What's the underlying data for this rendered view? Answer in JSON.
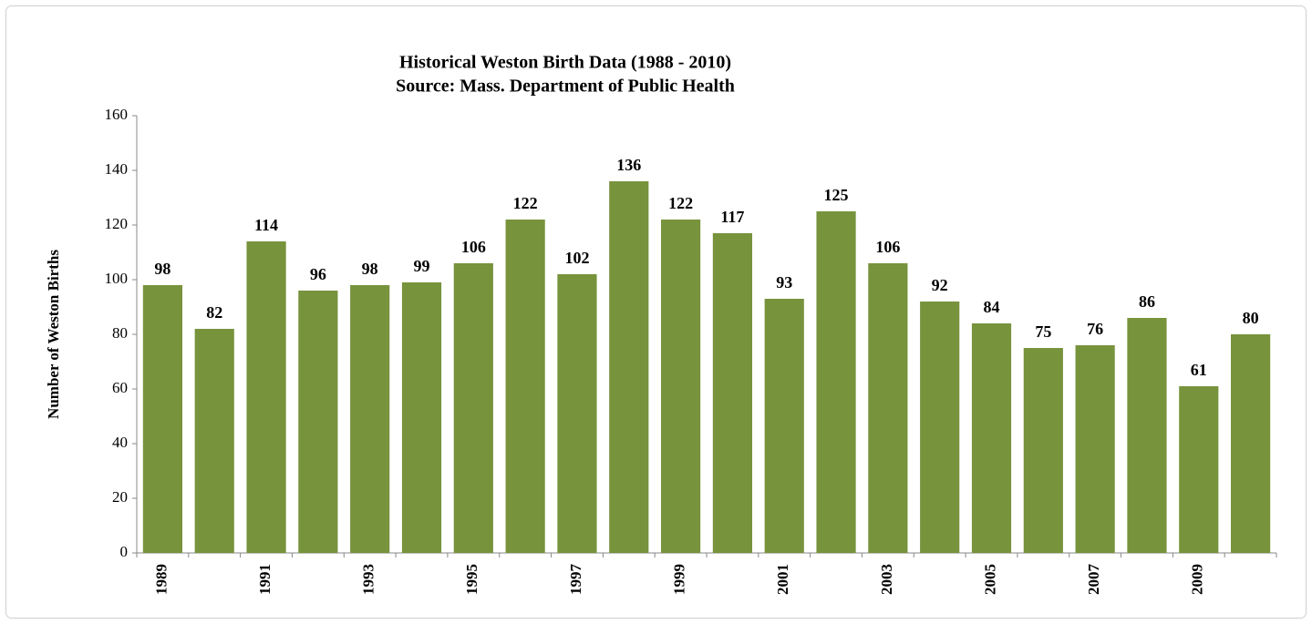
{
  "chart_data": {
    "type": "bar",
    "title": "Historical Weston Birth Data  (1988 - 2010)",
    "subtitle": "Source: Mass. Department of Public Health",
    "y_label": "Number of Weston Births",
    "categories": [
      "1989",
      null,
      "1991",
      null,
      "1993",
      null,
      "1995",
      null,
      "1997",
      null,
      "1999",
      null,
      "2001",
      null,
      "2003",
      null,
      "2005",
      null,
      "2007",
      null,
      "2009",
      null
    ],
    "values": [
      98,
      82,
      114,
      96,
      98,
      99,
      106,
      122,
      102,
      136,
      122,
      117,
      93,
      125,
      106,
      92,
      84,
      75,
      76,
      86,
      61,
      80
    ],
    "color": "#77933c",
    "ylim": [
      0,
      160
    ],
    "yticks": [
      0,
      20,
      40,
      60,
      80,
      100,
      120,
      140,
      160
    ],
    "grid": false
  }
}
